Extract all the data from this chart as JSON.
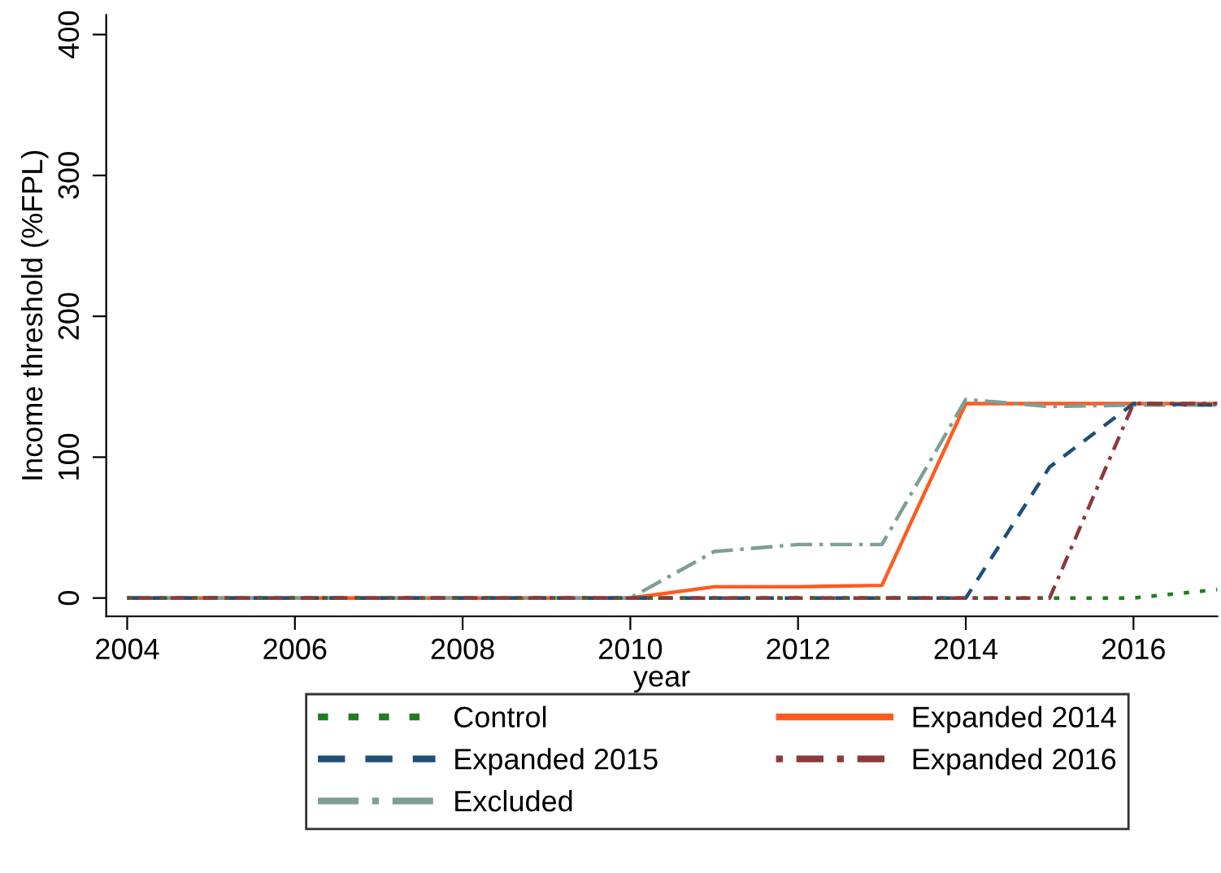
{
  "chart_data": {
    "type": "line",
    "xlabel": "year",
    "ylabel": "Income threshold (%FPL)",
    "x": [
      2004,
      2005,
      2006,
      2007,
      2008,
      2009,
      2010,
      2011,
      2012,
      2013,
      2014,
      2015,
      2016,
      2017
    ],
    "series": [
      {
        "name": "Control",
        "color": "#1f7f1f",
        "line_style": "dotted",
        "values": [
          0,
          0,
          0,
          0,
          0,
          0,
          0,
          0,
          0,
          0,
          0,
          0,
          0,
          6
        ]
      },
      {
        "name": "Expanded 2014",
        "color": "#ff5a1f",
        "line_style": "solid",
        "values": [
          0,
          0,
          0,
          0,
          0,
          0,
          0,
          8,
          8,
          9,
          138,
          138,
          138,
          138
        ]
      },
      {
        "name": "Expanded 2015",
        "color": "#1f4e79",
        "line_style": "dashed",
        "values": [
          0,
          0,
          0,
          0,
          0,
          0,
          0,
          0,
          0,
          0,
          0,
          93,
          138,
          137
        ]
      },
      {
        "name": "Expanded 2016",
        "color": "#8b3a3a",
        "line_style": "dashdot",
        "values": [
          0,
          0,
          0,
          0,
          0,
          0,
          0,
          0,
          0,
          0,
          0,
          0,
          138,
          138
        ]
      },
      {
        "name": "Excluded",
        "color": "#7f9f94",
        "line_style": "longdashdot",
        "values": [
          0,
          0,
          0,
          0,
          0,
          0,
          0,
          33,
          38,
          38,
          141,
          136,
          137,
          137
        ]
      }
    ],
    "xlim": [
      2003.75,
      2017
    ],
    "ylim": [
      -13,
      414
    ],
    "xticks": [
      2004,
      2006,
      2008,
      2010,
      2012,
      2014,
      2016
    ],
    "yticks": [
      0,
      100,
      200,
      300,
      400
    ],
    "grid": false,
    "legend": "bottom",
    "marker": "none"
  }
}
